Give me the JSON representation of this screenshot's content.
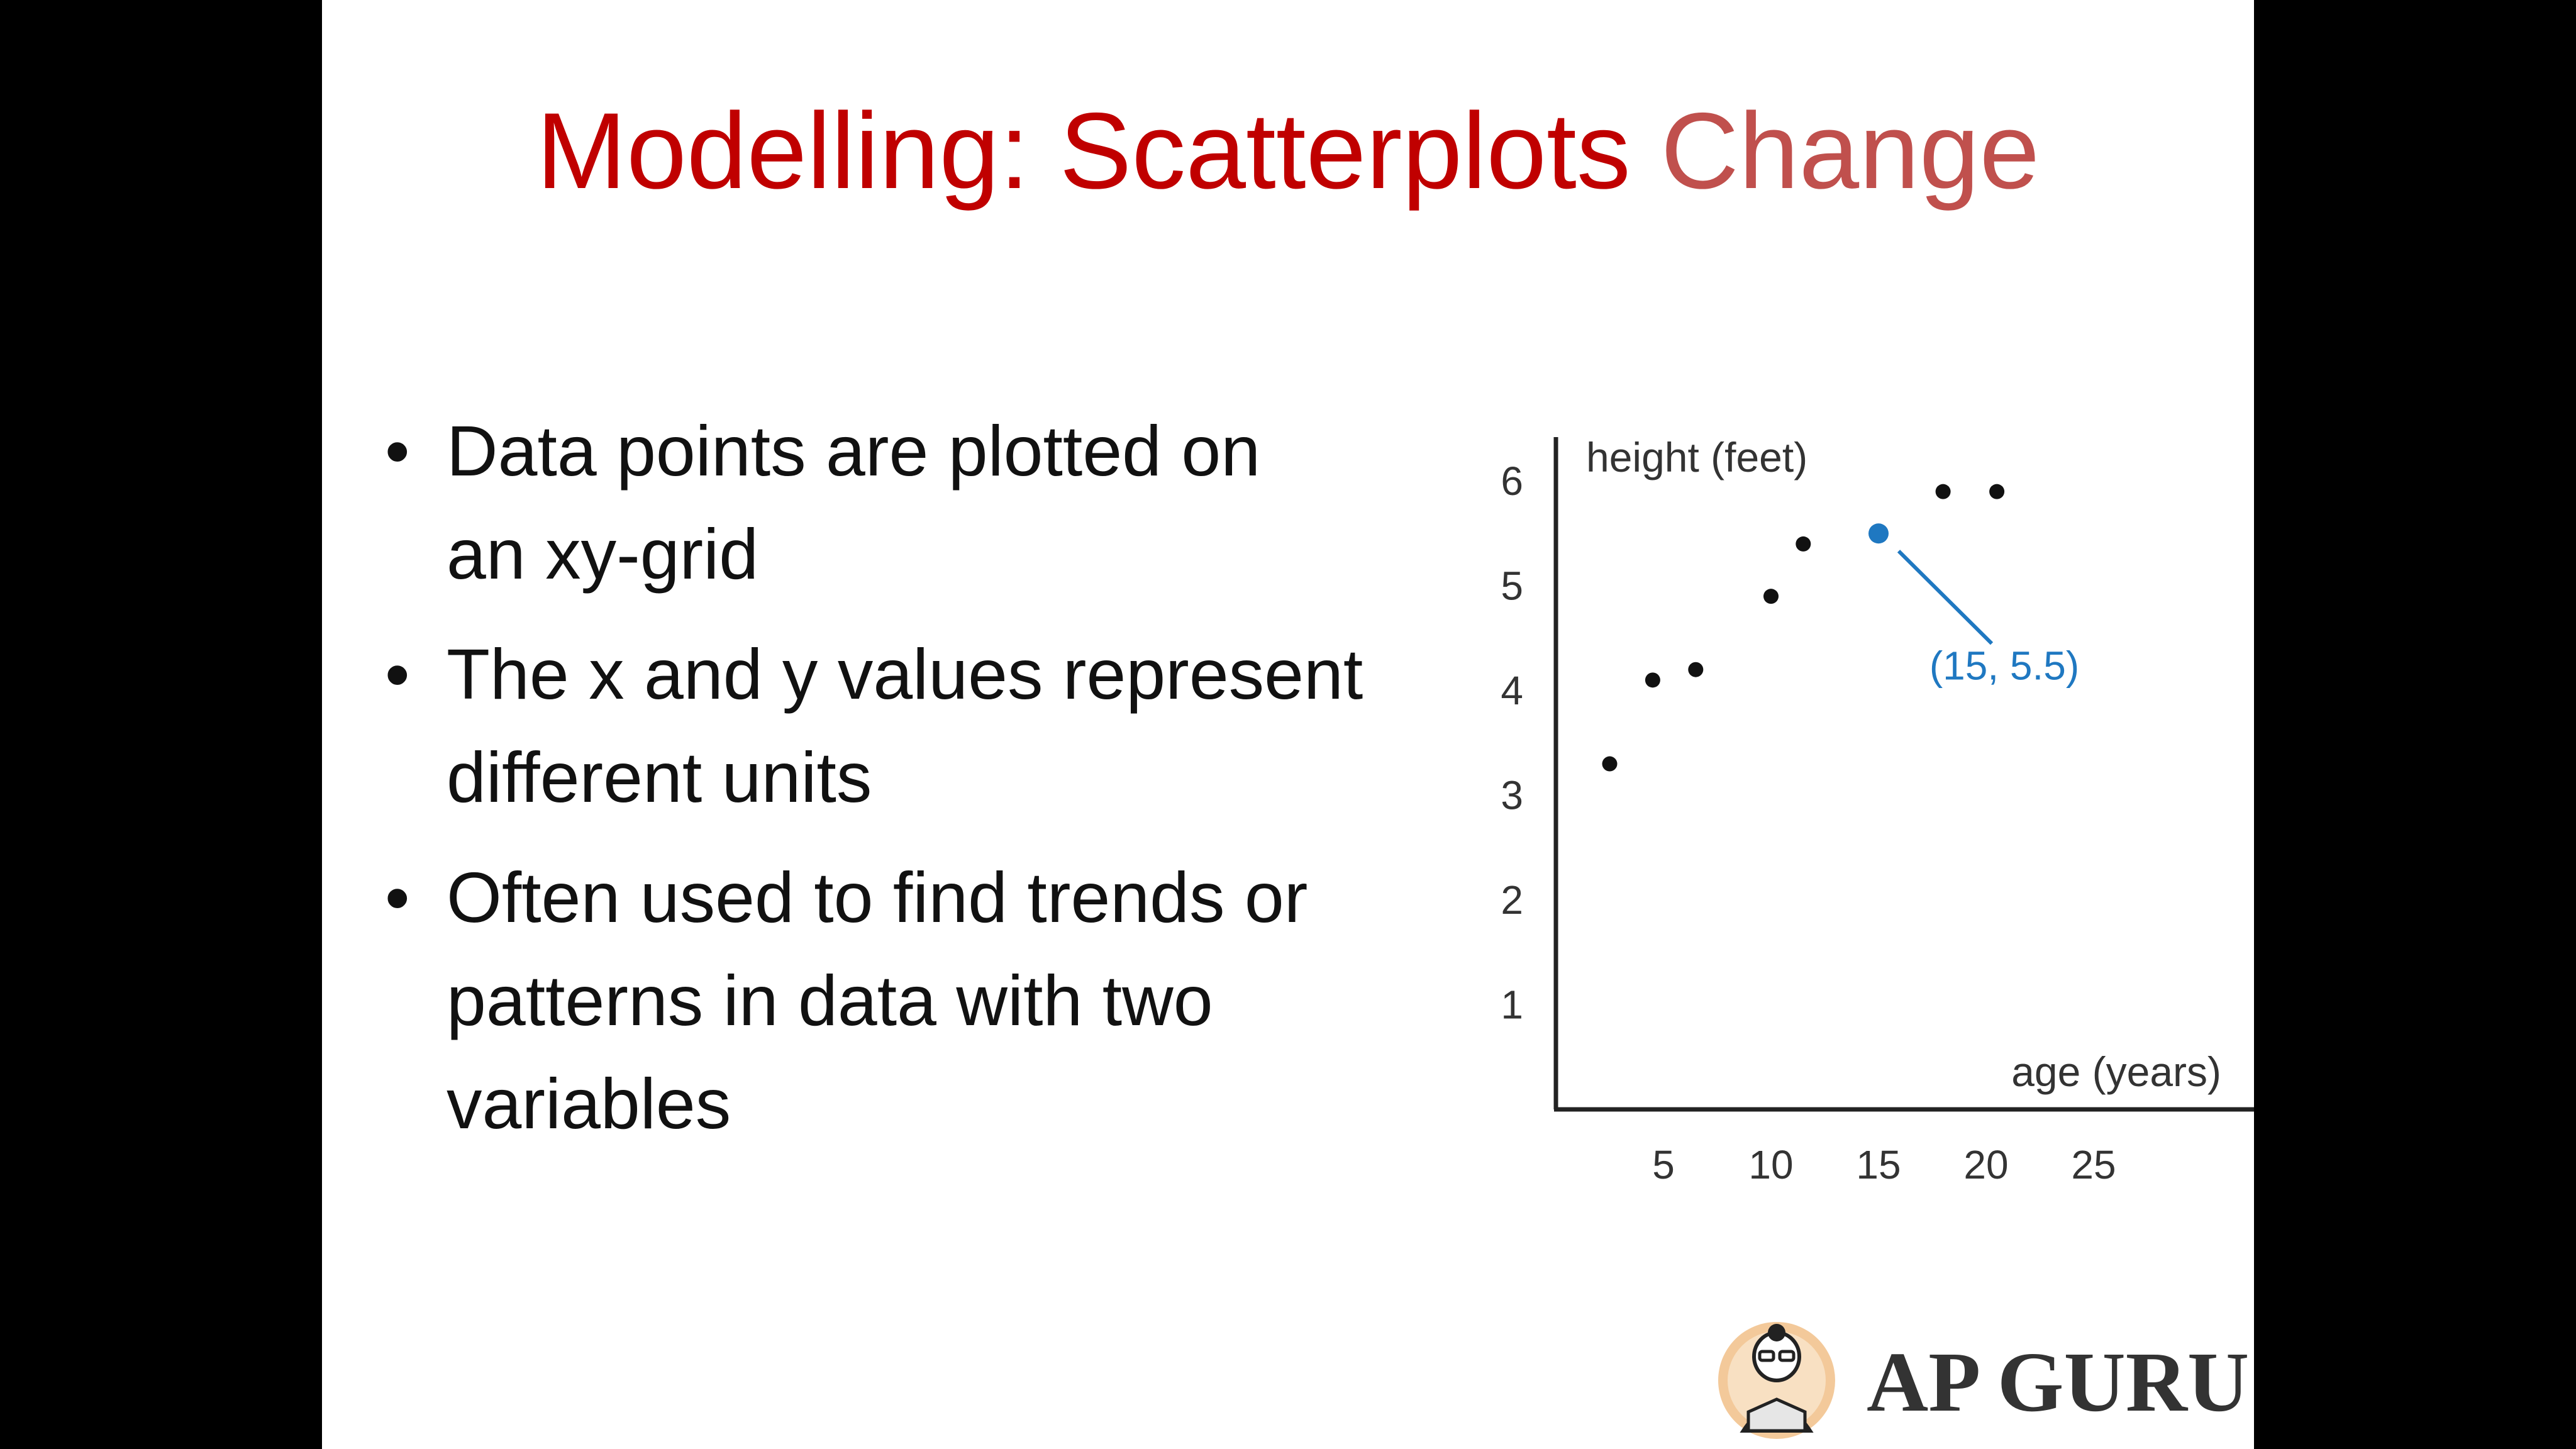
{
  "slide": {
    "title": "Modelling: Scatterplots",
    "title_accent": "Change",
    "bullets": [
      [
        "Data points are plotted on",
        "an xy-grid"
      ],
      [
        "The x and y values represent",
        "different units"
      ],
      [
        "Often used to find trends or",
        "patterns in data with two",
        "variables"
      ]
    ],
    "bullet_symbol": "•",
    "logo_text": "AP GURU",
    "colors": {
      "title": "#c00000",
      "title_accent": "#c0504d",
      "highlight": "#1f78c1"
    }
  },
  "chart_data": {
    "type": "scatter",
    "xlabel": "age (years)",
    "ylabel": "height (feet)",
    "xlim": [
      0,
      31
    ],
    "ylim": [
      0,
      6.6
    ],
    "x_ticks": [
      5,
      10,
      15,
      20,
      25
    ],
    "y_ticks": [
      1,
      2,
      3,
      4,
      5,
      6
    ],
    "grid": false,
    "points": [
      {
        "x": 2.5,
        "y": 3.3
      },
      {
        "x": 4.5,
        "y": 4.1
      },
      {
        "x": 6.5,
        "y": 4.2
      },
      {
        "x": 10,
        "y": 4.9
      },
      {
        "x": 11.5,
        "y": 5.4
      },
      {
        "x": 15,
        "y": 5.5,
        "highlight": true
      },
      {
        "x": 18,
        "y": 5.9
      },
      {
        "x": 20.5,
        "y": 5.9
      }
    ],
    "annotation": {
      "text": "(15, 5.5)",
      "x": 15,
      "y": 5.5
    }
  }
}
